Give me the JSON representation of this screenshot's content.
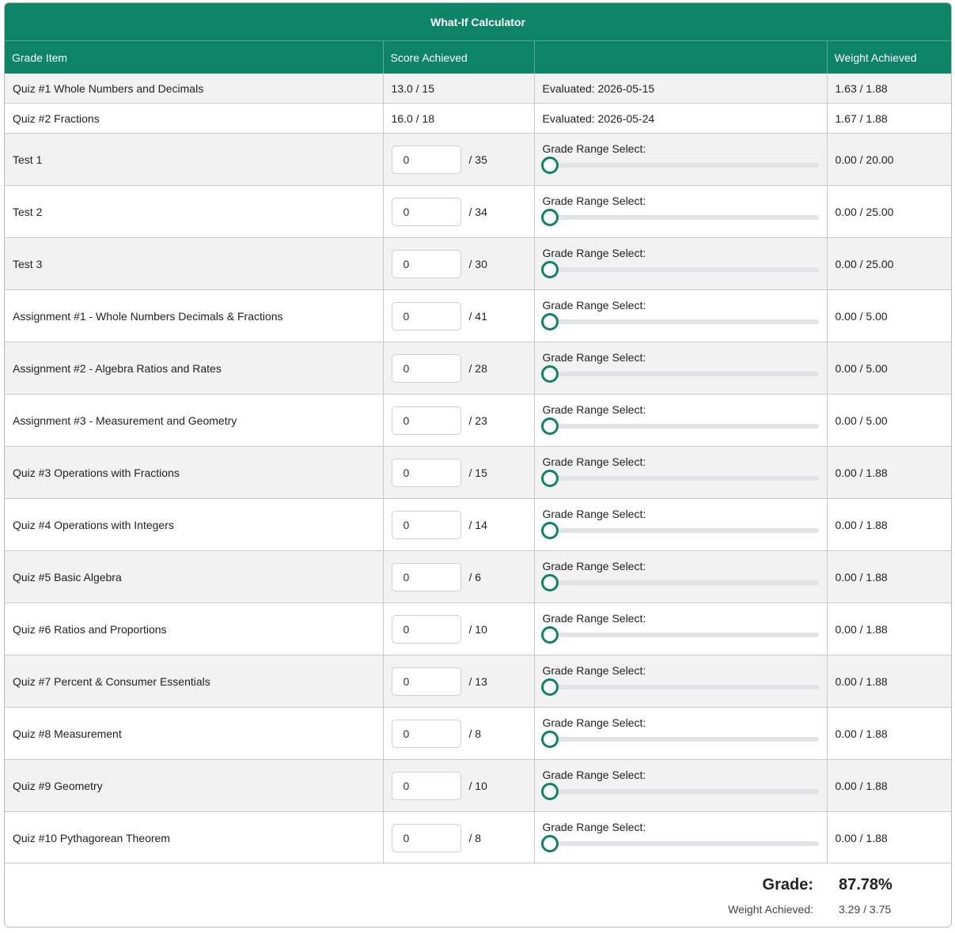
{
  "title": "What-If Calculator",
  "columns": {
    "item": "Grade Item",
    "score": "Score Achieved",
    "range": "",
    "weight": "Weight Achieved"
  },
  "range_label": "Grade Range Select:",
  "colors": {
    "accent": "#0e8466",
    "track": "#e1e3e6"
  },
  "evaluated_rows": [
    {
      "name": "Quiz #1 Whole Numbers and Decimals",
      "score": "13.0 / 15",
      "evaluated": "Evaluated: 2026-05-15",
      "weight": "1.63 / 1.88"
    },
    {
      "name": "Quiz #2 Fractions",
      "score": "16.0 / 18",
      "evaluated": "Evaluated: 2026-05-24",
      "weight": "1.67 / 1.88"
    }
  ],
  "whatif_rows": [
    {
      "name": "Test 1",
      "value": "0",
      "out_of": "/ 35",
      "weight": "0.00 / 20.00",
      "slider_fraction": 0
    },
    {
      "name": "Test 2",
      "value": "0",
      "out_of": "/ 34",
      "weight": "0.00 / 25.00",
      "slider_fraction": 0
    },
    {
      "name": "Test 3",
      "value": "0",
      "out_of": "/ 30",
      "weight": "0.00 / 25.00",
      "slider_fraction": 0
    },
    {
      "name": "Assignment #1 - Whole Numbers Decimals & Fractions",
      "value": "0",
      "out_of": "/ 41",
      "weight": "0.00 / 5.00",
      "slider_fraction": 0
    },
    {
      "name": "Assignment #2 - Algebra Ratios and Rates",
      "value": "0",
      "out_of": "/ 28",
      "weight": "0.00 / 5.00",
      "slider_fraction": 0
    },
    {
      "name": "Assignment #3 - Measurement and Geometry",
      "value": "0",
      "out_of": "/ 23",
      "weight": "0.00 / 5.00",
      "slider_fraction": 0
    },
    {
      "name": "Quiz #3 Operations with Fractions",
      "value": "0",
      "out_of": "/ 15",
      "weight": "0.00 / 1.88",
      "slider_fraction": 0
    },
    {
      "name": "Quiz #4 Operations with Integers",
      "value": "0",
      "out_of": "/ 14",
      "weight": "0.00 / 1.88",
      "slider_fraction": 0
    },
    {
      "name": "Quiz #5 Basic Algebra",
      "value": "0",
      "out_of": "/ 6",
      "weight": "0.00 / 1.88",
      "slider_fraction": 0
    },
    {
      "name": "Quiz #6 Ratios and Proportions",
      "value": "0",
      "out_of": "/ 10",
      "weight": "0.00 / 1.88",
      "slider_fraction": 0
    },
    {
      "name": "Quiz #7 Percent & Consumer Essentials",
      "value": "0",
      "out_of": "/ 13",
      "weight": "0.00 / 1.88",
      "slider_fraction": 0
    },
    {
      "name": "Quiz #8 Measurement",
      "value": "0",
      "out_of": "/ 8",
      "weight": "0.00 / 1.88",
      "slider_fraction": 0
    },
    {
      "name": "Quiz #9 Geometry",
      "value": "0",
      "out_of": "/ 10",
      "weight": "0.00 / 1.88",
      "slider_fraction": 0
    },
    {
      "name": "Quiz #10 Pythagorean Theorem",
      "value": "0",
      "out_of": "/ 8",
      "weight": "0.00 / 1.88",
      "slider_fraction": 0
    }
  ],
  "summary": {
    "grade_label": "Grade:",
    "grade_value": "87.78%",
    "weight_label": "Weight Achieved:",
    "weight_value": "3.29 / 3.75"
  }
}
